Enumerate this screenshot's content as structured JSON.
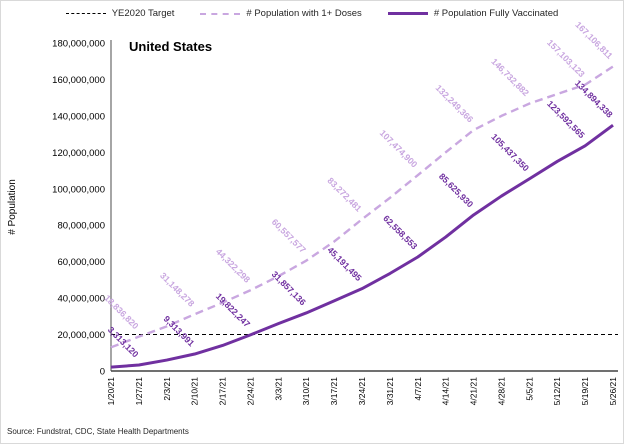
{
  "title": "United States",
  "source": "Source: Fundstrat, CDC, State Health Departments",
  "legend": {
    "items": [
      {
        "label": "YE2020 Target",
        "style": "dashed",
        "color": "#000000"
      },
      {
        "label": "# Population with 1+ Doses",
        "style": "dashed",
        "color": "#c9a7e0"
      },
      {
        "label": "# Population Fully Vaccinated",
        "style": "solid",
        "color": "#7030a0"
      }
    ]
  },
  "chart_data": {
    "type": "line",
    "title": "United States",
    "xlabel": "",
    "ylabel": "# Population",
    "ylim": [
      0,
      180000000
    ],
    "ytick_step": 20000000,
    "grid": false,
    "legend_position": "top",
    "categories": [
      "1/20/21",
      "1/27/21",
      "2/3/21",
      "2/10/21",
      "2/17/21",
      "2/24/21",
      "3/3/21",
      "3/10/21",
      "3/17/21",
      "3/24/21",
      "3/31/21",
      "4/7/21",
      "4/14/21",
      "4/21/21",
      "4/28/21",
      "5/5/21",
      "5/12/21",
      "5/19/21",
      "5/26/21"
    ],
    "target": {
      "name": "YE2020 Target",
      "value": 20000000,
      "color": "#000000"
    },
    "series": [
      {
        "name": "# Population with 1+ Doses",
        "color": "#c9a7e0",
        "style": "dashed",
        "values": [
          13000000,
          18836820,
          24500000,
          31148278,
          37500000,
          44322298,
          52000000,
          60557577,
          71000000,
          83272481,
          95000000,
          107474900,
          120000000,
          132249366,
          140000000,
          146732882,
          152000000,
          157103123,
          167106811
        ],
        "data_labels": [
          null,
          "18,836,820",
          null,
          "31,148,278",
          null,
          "44,322,298",
          null,
          "60,557,577",
          null,
          "83,272,481",
          null,
          "107,474,900",
          null,
          "132,249,366",
          null,
          "146,732,882",
          null,
          "157,103,123",
          "167,106,811"
        ]
      },
      {
        "name": "# Population Fully Vaccinated",
        "color": "#7030a0",
        "style": "solid",
        "values": [
          2100000,
          3313120,
          6000000,
          9313991,
          14000000,
          19822247,
          26000000,
          31857136,
          38500000,
          45191495,
          53500000,
          62558553,
          73500000,
          85625930,
          96000000,
          105437350,
          115000000,
          123592565,
          134894338
        ],
        "data_labels": [
          null,
          "3,313,120",
          null,
          "9,313,991",
          null,
          "19,822,247",
          null,
          "31,857,136",
          null,
          "45,191,495",
          null,
          "62,558,553",
          null,
          "85,625,930",
          null,
          "105,437,350",
          null,
          "123,592,565",
          "134,894,338"
        ]
      }
    ]
  }
}
